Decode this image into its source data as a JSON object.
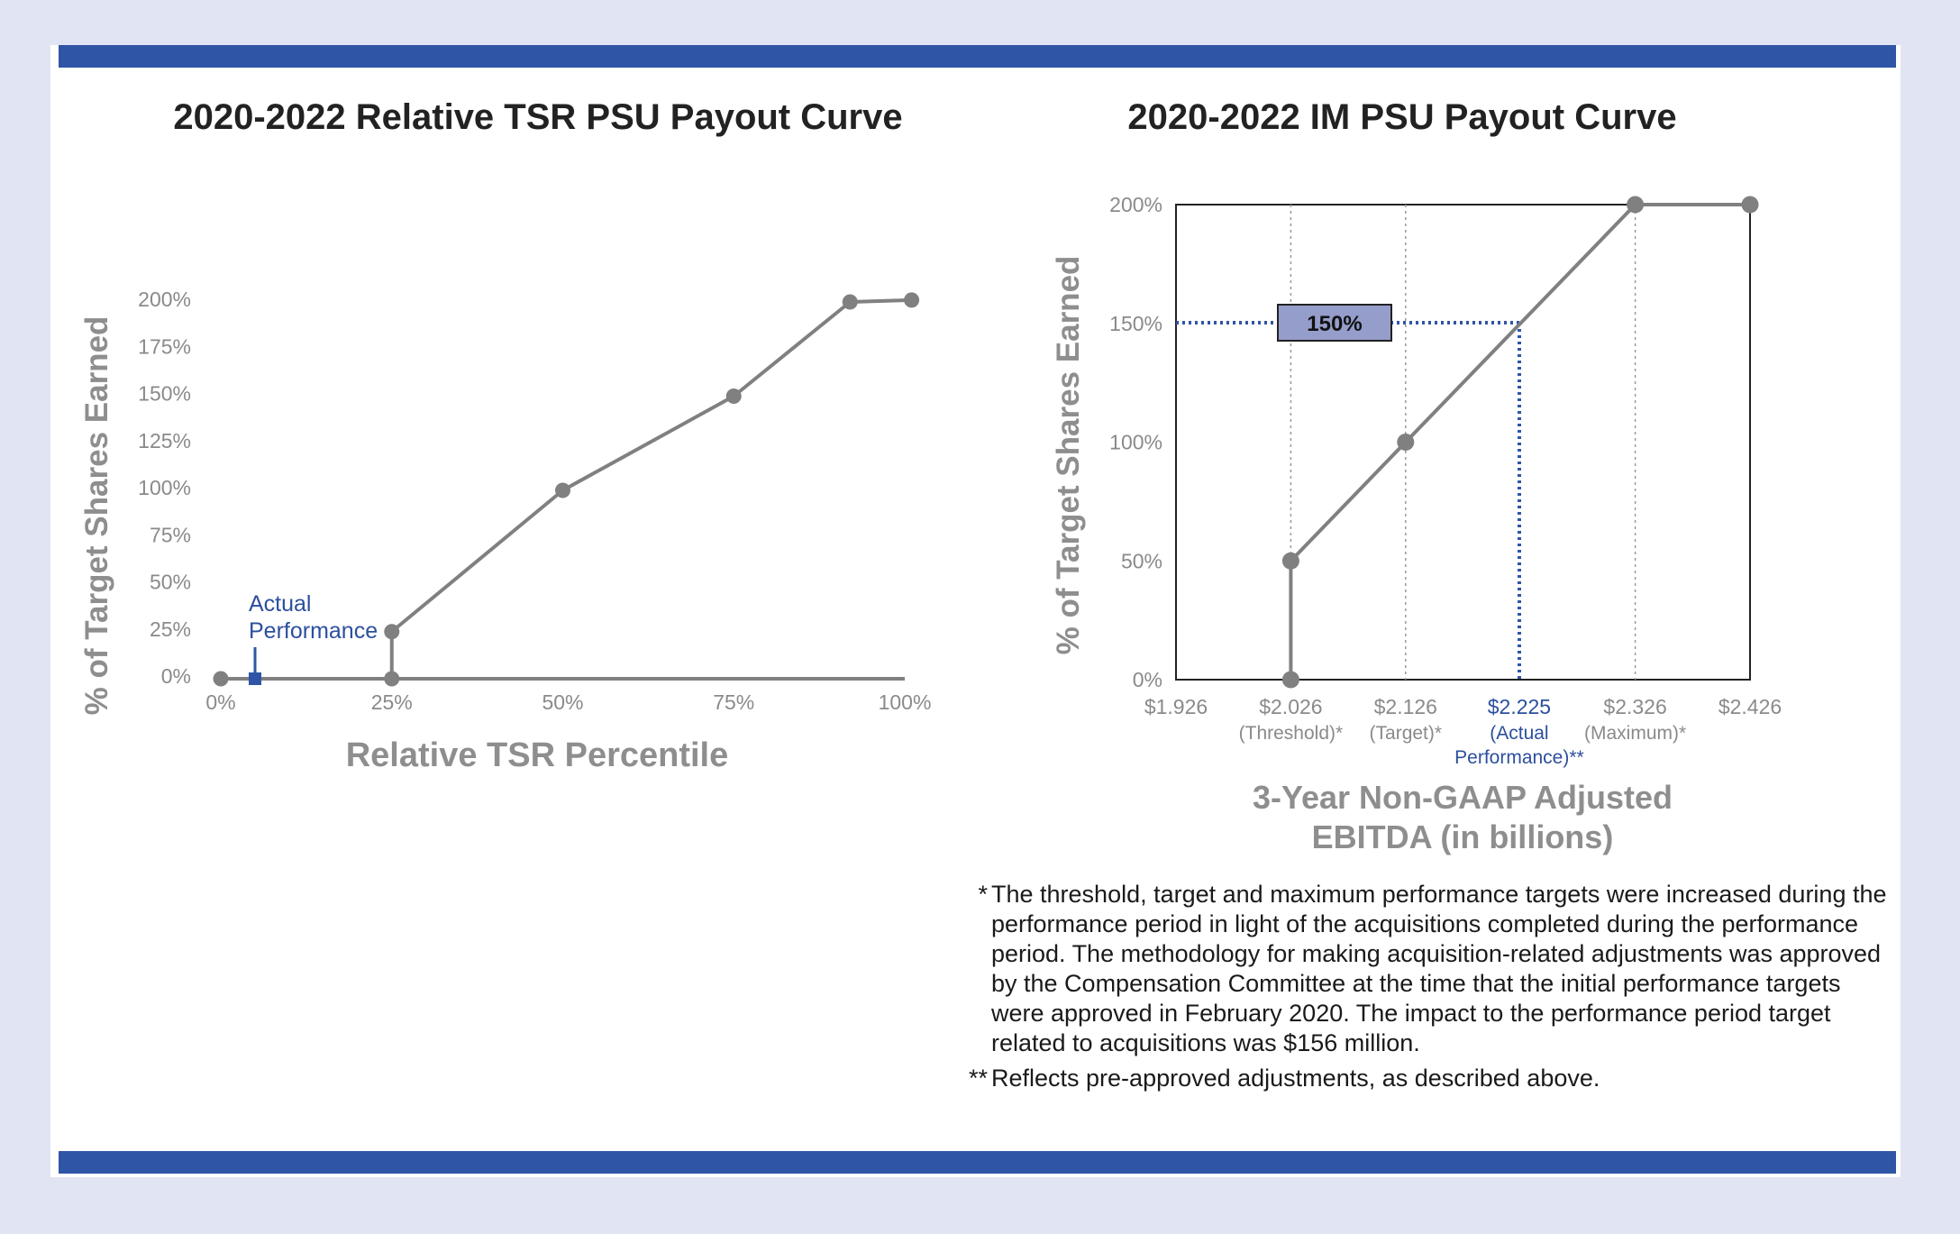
{
  "colors": {
    "frame_background": "#e1e4f3",
    "band": "#2f55a6",
    "series_line": "#808080",
    "accent_blue": "#2f55a6",
    "callout_fill": "#959dcb"
  },
  "chart_data": [
    {
      "type": "line",
      "title": "2020-2022 Relative TSR PSU Payout Curve",
      "xlabel": "Relative TSR Percentile",
      "ylabel": "% of Target Shares Earned",
      "x_ticks": [
        "0%",
        "25%",
        "50%",
        "75%",
        "100%"
      ],
      "y_ticks": [
        "0%",
        "25%",
        "50%",
        "75%",
        "100%",
        "125%",
        "150%",
        "175%",
        "200%"
      ],
      "xlim": [
        0,
        100
      ],
      "ylim": [
        0,
        200
      ],
      "grid": false,
      "series": [
        {
          "name": "Payout",
          "x": [
            0,
            25,
            25,
            50,
            75,
            92,
            101
          ],
          "y": [
            0,
            0,
            25,
            100,
            150,
            200,
            201
          ]
        }
      ],
      "actual": {
        "label_line1": "Actual",
        "label_line2": "Performance",
        "x": 5,
        "y": 0
      }
    },
    {
      "type": "line",
      "title": "2020-2022 IM PSU Payout Curve",
      "xlabel_line1": "3-Year Non-GAAP Adjusted",
      "xlabel_line2": "EBITDA (in billions)",
      "ylabel": "% of Target Shares Earned",
      "xlim": [
        1.926,
        2.426
      ],
      "ylim": [
        0,
        200
      ],
      "y_ticks": [
        "0%",
        "50%",
        "100%",
        "150%",
        "200%"
      ],
      "x_ticks": [
        {
          "value": 1.926,
          "label": "$1.926",
          "sub1": "",
          "sub2": "",
          "highlight": false
        },
        {
          "value": 2.026,
          "label": "$2.026",
          "sub1": "(Threshold)*",
          "sub2": "",
          "highlight": false
        },
        {
          "value": 2.126,
          "label": "$2.126",
          "sub1": "(Target)*",
          "sub2": "",
          "highlight": false
        },
        {
          "value": 2.225,
          "label": "$2.225",
          "sub1": "(Actual",
          "sub2": "Performance)**",
          "highlight": true
        },
        {
          "value": 2.326,
          "label": "$2.326",
          "sub1": "(Maximum)*",
          "sub2": "",
          "highlight": false
        },
        {
          "value": 2.426,
          "label": "$2.426",
          "sub1": "",
          "sub2": "",
          "highlight": false
        }
      ],
      "series": [
        {
          "name": "Payout",
          "x": [
            2.026,
            2.026,
            2.126,
            2.326,
            2.426
          ],
          "y": [
            0,
            50,
            100,
            200,
            200
          ]
        }
      ],
      "actual": {
        "x": 2.225,
        "y": 150,
        "callout": "150%"
      }
    }
  ],
  "footnotes": [
    {
      "mark": "*",
      "text": "The threshold, target and maximum performance targets were increased during the performance period in light of the acquisitions completed during the performance period. The methodology for making acquisition-related adjustments was approved by the Compensation Committee at the time that the initial performance targets were approved in February 2020. The impact to the performance period target related to acquisitions was $156 million."
    },
    {
      "mark": "**",
      "text": "Reflects pre-approved adjustments, as described above."
    }
  ]
}
